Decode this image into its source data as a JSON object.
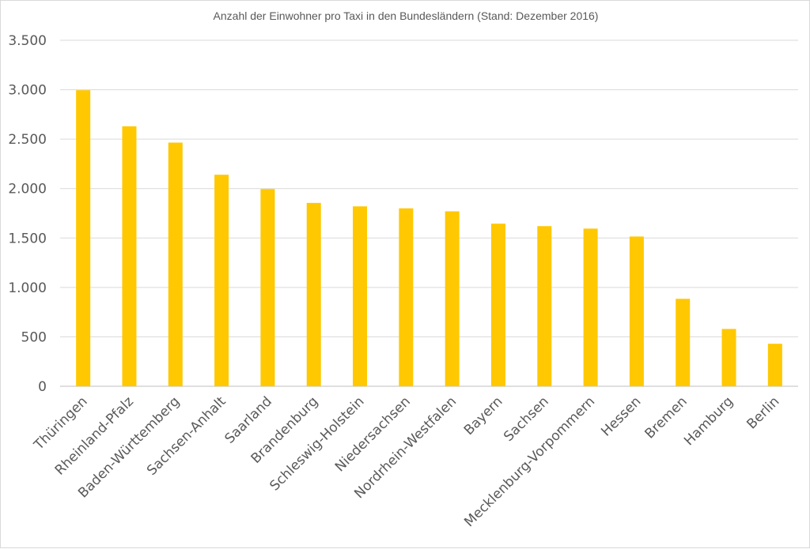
{
  "chart_data": {
    "type": "bar",
    "title": "Anzahl der Einwohner pro Taxi in den Bundesländern (Stand: Dezember 2016)",
    "xlabel": "",
    "ylabel": "",
    "ylim": [
      0,
      3500
    ],
    "yticks": [
      0,
      500,
      1000,
      1500,
      2000,
      2500,
      3000,
      3500
    ],
    "ytick_labels": [
      "0",
      "500",
      "1.000",
      "1.500",
      "2.000",
      "2.500",
      "3.000",
      "3.500"
    ],
    "grid": true,
    "legend": "none",
    "bar_color": "#FFC800",
    "categories": [
      "Thüringen",
      "Rheinland-Pfalz",
      "Baden-Württemberg",
      "Sachsen-Anhalt",
      "Saarland",
      "Brandenburg",
      "Schleswig-Holstein",
      "Niedersachsen",
      "Nordrhein-Westfalen",
      "Bayern",
      "Sachsen",
      "Mecklenburg-Vorpommern",
      "Hessen",
      "Bremen",
      "Hamburg",
      "Berlin"
    ],
    "values": [
      2995,
      2630,
      2465,
      2140,
      1995,
      1855,
      1820,
      1800,
      1770,
      1645,
      1620,
      1595,
      1515,
      885,
      580,
      430
    ]
  }
}
